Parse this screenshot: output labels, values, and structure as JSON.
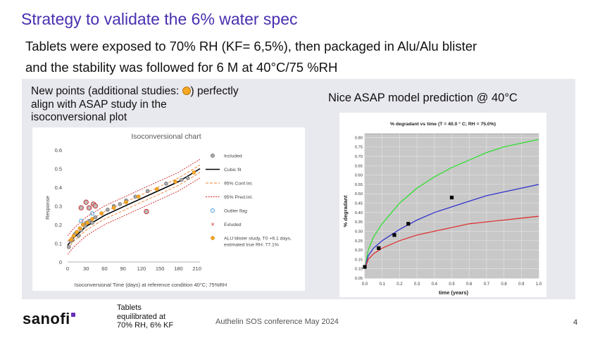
{
  "slide": {
    "title": "Strategy to validate the 6% water spec",
    "line1": "Tablets were exposed to 70% RH (KF= 6,5%), then packaged in Alu/Alu blister",
    "line2": "and the stability was followed for 6 M at 40°C/75 %RH",
    "note_part1": "New points (additional studies:",
    "note_part2": ") perfectly",
    "note_line2": "align with ASAP study in the",
    "note_line3": "isoconversional plot",
    "right_label": "Nice  ASAP model prediction @ 40°C",
    "footer_note": [
      "Tablets",
      "equilibrated at",
      "70% RH, 6% KF"
    ],
    "conference": "Authelin SOS conference May 2024",
    "page_number": "4",
    "logo_text": "sanofi",
    "colors": {
      "title": "#4a2fb0",
      "logo_accent": "#6a2fb8",
      "alu_point": "#f5a623"
    }
  },
  "chart_data": [
    {
      "type": "scatter",
      "title": "Isoconversional chart",
      "xlabel": "Isoconversional Time (days) at reference condition 40°C; 75%RH",
      "ylabel": "Response",
      "xlim": [
        0,
        215
      ],
      "ylim": [
        0,
        0.6
      ],
      "xticks": [
        "0",
        "30",
        "60",
        "90",
        "120",
        "150",
        "180",
        "210"
      ],
      "yticks": [
        "0",
        "0.1",
        "0.2",
        "0.3",
        "0.4",
        "0.5",
        "0.6"
      ],
      "legend": [
        {
          "label": "Included",
          "kind": "grey-dot"
        },
        {
          "label": "Cubic fit",
          "kind": "black-line"
        },
        {
          "label": "95% Conf.Int.",
          "kind": "orange-dash"
        },
        {
          "label": "95% Pred.Int.",
          "kind": "red-dash"
        },
        {
          "label": "Outlier flag",
          "kind": "blue-ring"
        },
        {
          "label": "Exluded",
          "kind": "red-x"
        },
        {
          "label": "ALU blister study, T0 +6.1 days, estimated true RH: 77.1%",
          "kind": "orange-dot"
        }
      ],
      "included": [
        [
          2,
          0.08
        ],
        [
          5,
          0.11
        ],
        [
          8,
          0.12
        ],
        [
          10,
          0.14
        ],
        [
          12,
          0.15
        ],
        [
          15,
          0.16
        ],
        [
          18,
          0.14
        ],
        [
          20,
          0.18
        ],
        [
          22,
          0.17
        ],
        [
          25,
          0.2
        ],
        [
          28,
          0.19
        ],
        [
          30,
          0.21
        ],
        [
          35,
          0.22
        ],
        [
          40,
          0.21
        ],
        [
          45,
          0.24
        ],
        [
          55,
          0.26
        ],
        [
          65,
          0.28
        ],
        [
          75,
          0.3
        ],
        [
          85,
          0.31
        ],
        [
          95,
          0.33
        ],
        [
          110,
          0.35
        ],
        [
          130,
          0.38
        ],
        [
          160,
          0.42
        ],
        [
          185,
          0.44
        ],
        [
          195,
          0.45
        ]
      ],
      "outliers": [
        [
          40,
          0.26
        ],
        [
          22,
          0.22
        ]
      ],
      "excluded": [
        [
          22,
          0.29
        ],
        [
          30,
          0.32
        ],
        [
          35,
          0.29
        ],
        [
          42,
          0.31
        ],
        [
          45,
          0.3
        ],
        [
          128,
          0.27
        ]
      ],
      "alu": [
        [
          6,
          0.12
        ],
        [
          10,
          0.14
        ],
        [
          15,
          0.16
        ],
        [
          20,
          0.18
        ],
        [
          25,
          0.2
        ],
        [
          32,
          0.21
        ],
        [
          40,
          0.23
        ],
        [
          55,
          0.26
        ],
        [
          75,
          0.29
        ],
        [
          95,
          0.32
        ],
        [
          115,
          0.35
        ],
        [
          145,
          0.39
        ],
        [
          175,
          0.43
        ],
        [
          205,
          0.48
        ]
      ],
      "fit": [
        [
          0,
          0.09
        ],
        [
          10,
          0.13
        ],
        [
          20,
          0.16
        ],
        [
          30,
          0.19
        ],
        [
          45,
          0.22
        ],
        [
          60,
          0.25
        ],
        [
          80,
          0.28
        ],
        [
          100,
          0.31
        ],
        [
          120,
          0.34
        ],
        [
          140,
          0.37
        ],
        [
          160,
          0.4
        ],
        [
          180,
          0.43
        ],
        [
          200,
          0.47
        ],
        [
          215,
          0.5
        ]
      ],
      "conf_band": 0.02,
      "pred_band": 0.05
    },
    {
      "type": "line",
      "title": "% degradant vs time (T = 40.0 ° C; RH = 75.0%)",
      "xlabel": "time (years)",
      "ylabel": "% degradant",
      "xlim": [
        0,
        1.0
      ],
      "ylim": [
        0.05,
        0.82
      ],
      "xticks": [
        "0.0",
        "0.1",
        "0.2",
        "0.3",
        "0.4",
        "0.5",
        "0.6",
        "0.7",
        "0.8",
        "0.9",
        "1.0"
      ],
      "yticks": [
        "0.05",
        "0.10",
        "0.15",
        "0.20",
        "0.25",
        "0.30",
        "0.35",
        "0.40",
        "0.45",
        "0.50",
        "0.55",
        "0.60",
        "0.65",
        "0.70",
        "0.75",
        "0.80"
      ],
      "series": [
        {
          "color": "#33dd33",
          "x": [
            0,
            0.02,
            0.05,
            0.1,
            0.2,
            0.3,
            0.4,
            0.5,
            0.6,
            0.7,
            0.8,
            0.9,
            1.0
          ],
          "y": [
            0.1,
            0.2,
            0.27,
            0.34,
            0.45,
            0.53,
            0.59,
            0.64,
            0.68,
            0.72,
            0.75,
            0.77,
            0.79
          ]
        },
        {
          "color": "#3333cc",
          "x": [
            0,
            0.02,
            0.05,
            0.1,
            0.2,
            0.3,
            0.4,
            0.5,
            0.6,
            0.7,
            0.8,
            0.9,
            1.0
          ],
          "y": [
            0.1,
            0.17,
            0.21,
            0.25,
            0.31,
            0.36,
            0.4,
            0.43,
            0.46,
            0.49,
            0.51,
            0.53,
            0.55
          ]
        },
        {
          "color": "#dd3333",
          "x": [
            0,
            0.02,
            0.05,
            0.1,
            0.2,
            0.3,
            0.4,
            0.5,
            0.6,
            0.7,
            0.8,
            0.9,
            1.0
          ],
          "y": [
            0.1,
            0.15,
            0.18,
            0.21,
            0.25,
            0.28,
            0.3,
            0.32,
            0.34,
            0.35,
            0.36,
            0.37,
            0.38
          ]
        }
      ],
      "points": [
        [
          0.0,
          0.11
        ],
        [
          0.08,
          0.21
        ],
        [
          0.17,
          0.28
        ],
        [
          0.25,
          0.34
        ],
        [
          0.5,
          0.48
        ]
      ]
    }
  ]
}
